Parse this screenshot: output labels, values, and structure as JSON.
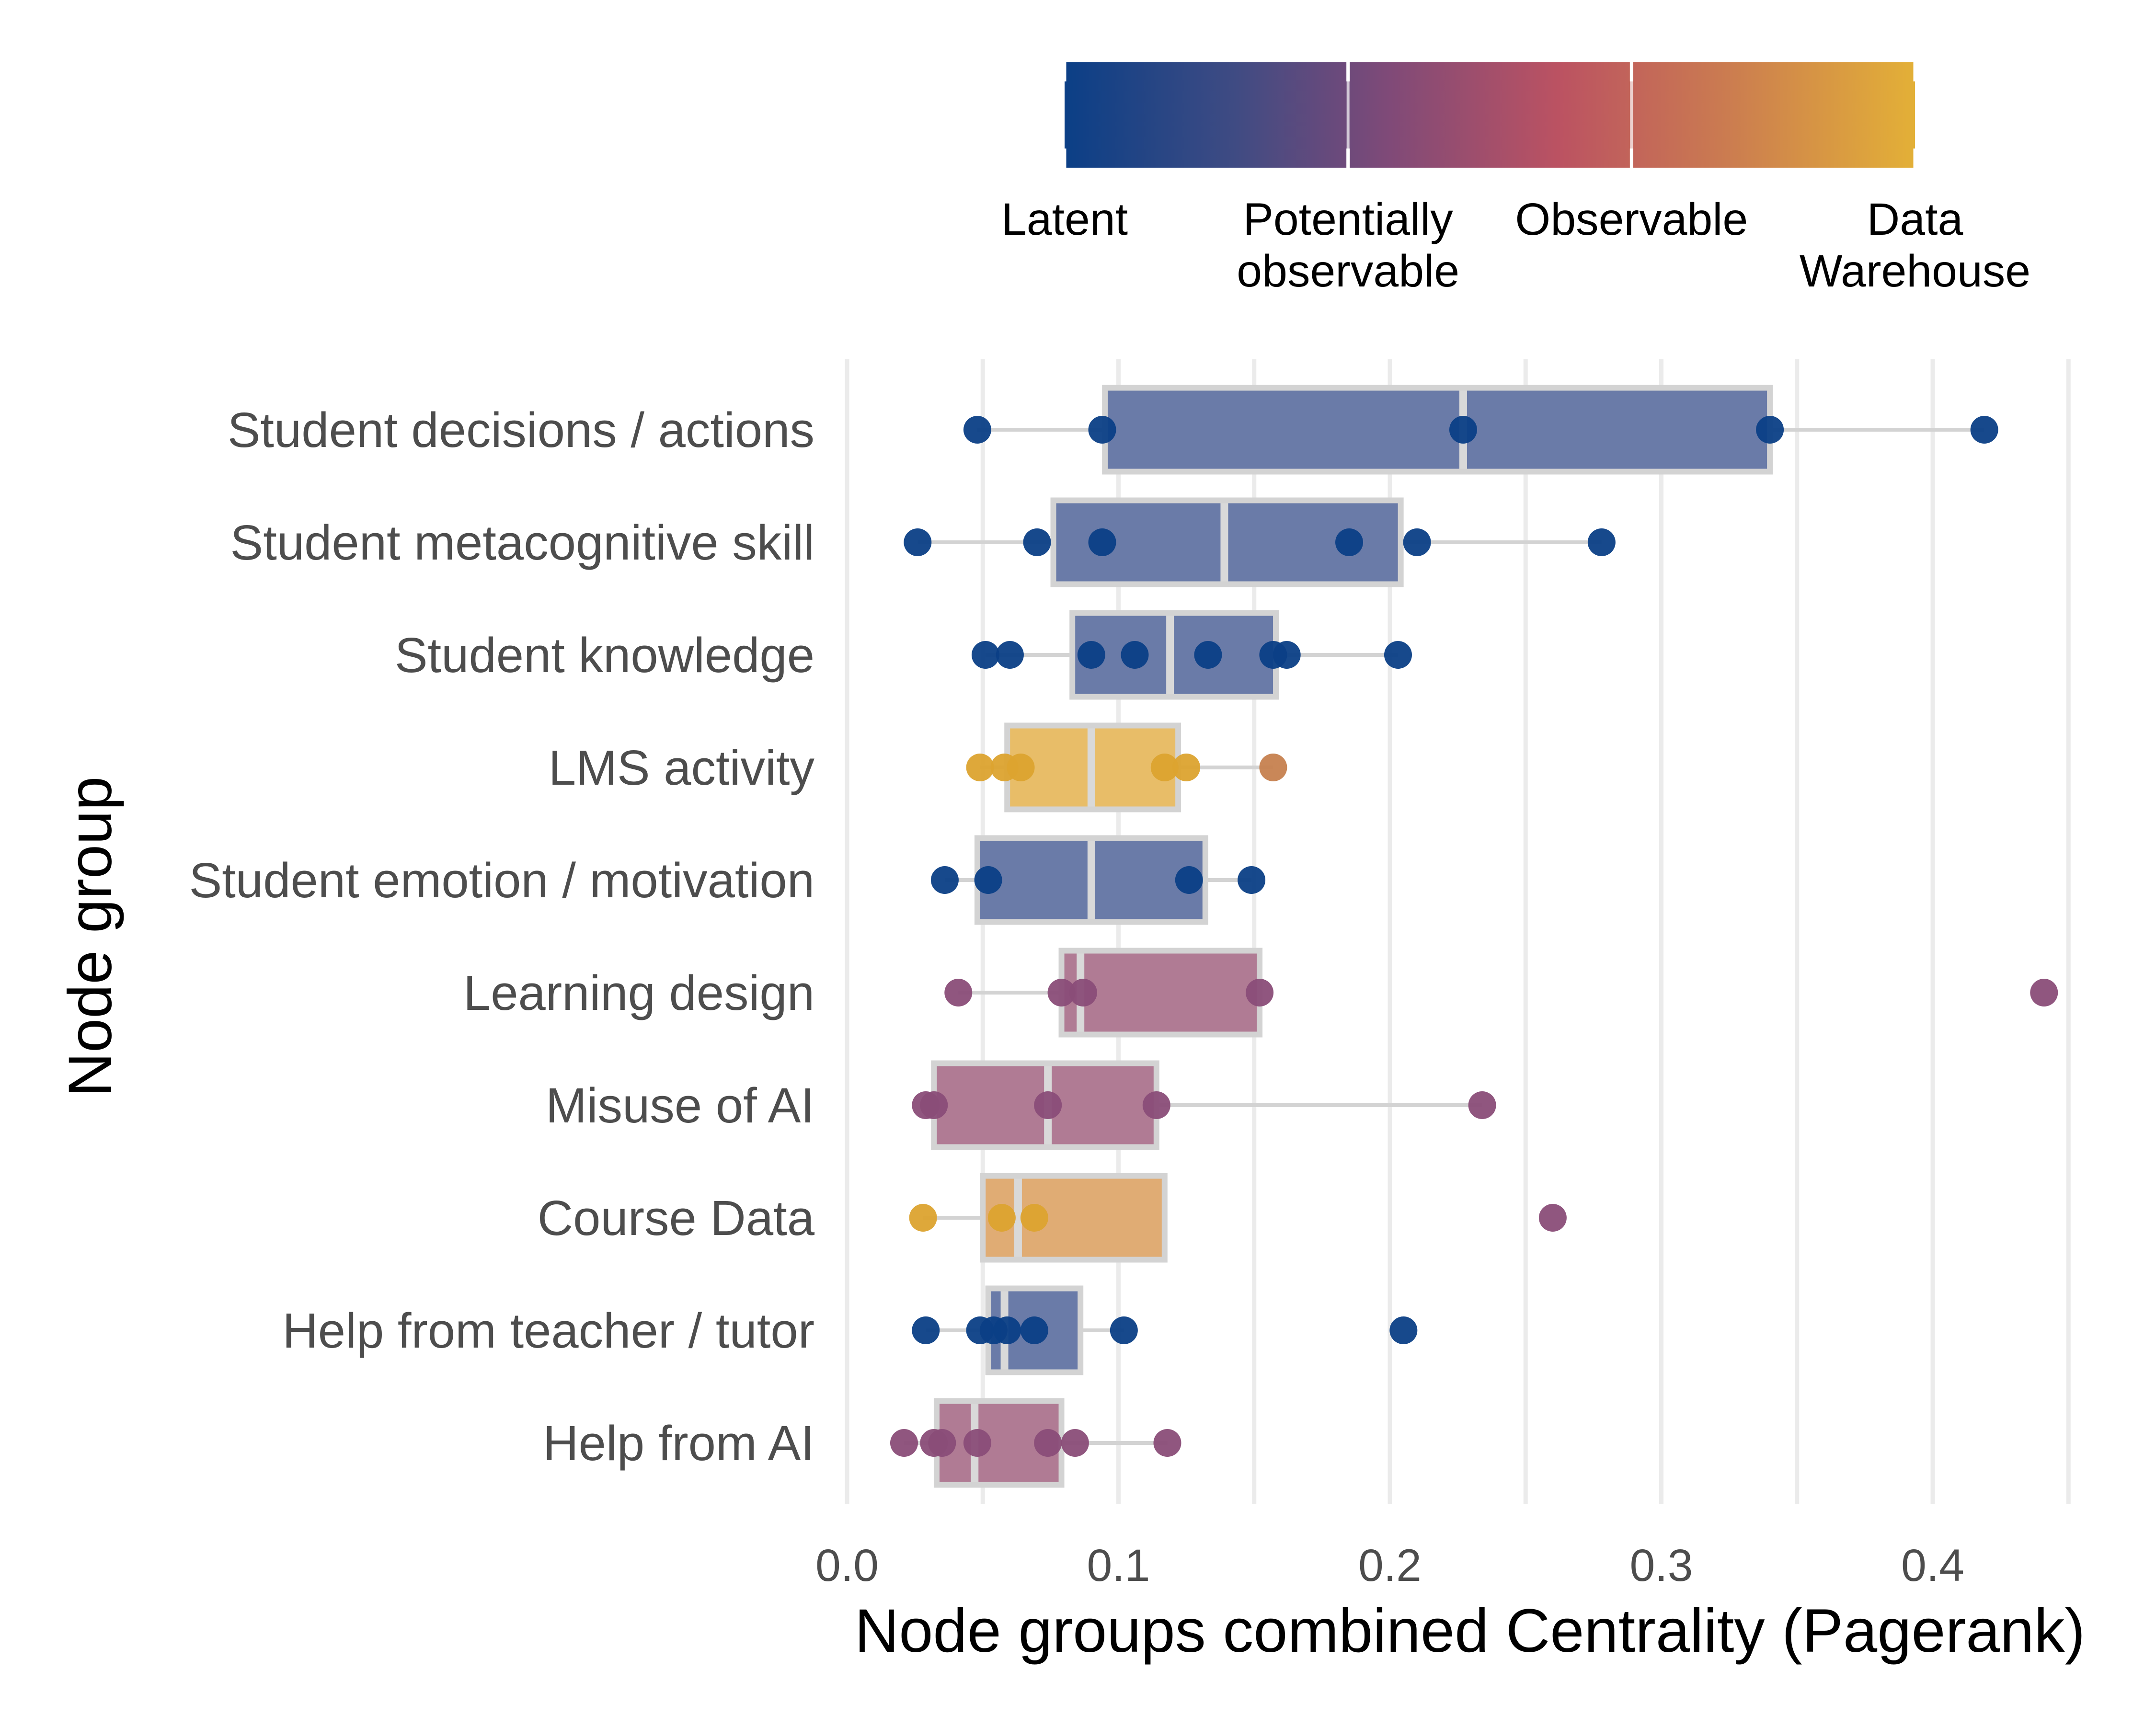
{
  "chart_data": {
    "type": "boxplot",
    "xlabel": "Node groups combined Centrality (Pagerank)",
    "ylabel": "Node group",
    "xlim": [
      0,
      0.45
    ],
    "xticks": [
      0.0,
      0.1,
      0.2,
      0.3,
      0.4
    ],
    "xtick_labels": [
      "0.0",
      "0.1",
      "0.2",
      "0.3",
      "0.4"
    ],
    "grid": true,
    "legend": {
      "type": "colorbar",
      "placement": "top",
      "labels": [
        "Latent",
        "Potentially\nobservable",
        "Observable",
        "Data\nWarehouse"
      ],
      "colors": [
        "#0b3f86",
        "#8a4d78",
        "#b95361",
        "#e3b037"
      ]
    },
    "colors": {
      "latent": "#0b3f86",
      "potentially_observable": "#8a4d78",
      "observable": "#c6814f",
      "data_warehouse": "#dca32f",
      "box_latent": "#6a7ba8",
      "box_potential": "#b07b94",
      "box_warehouse_lms": "#e8bd68",
      "box_warehouse_course": "#e0ac74"
    },
    "groups": [
      {
        "name": "Student decisions / actions",
        "box": {
          "whisker_low": 0.048,
          "q1": 0.095,
          "median": 0.227,
          "q3": 0.34,
          "whisker_high": 0.419
        },
        "box_color": "#6a7ba8",
        "points": [
          {
            "x": 0.048,
            "type": "latent"
          },
          {
            "x": 0.094,
            "type": "latent"
          },
          {
            "x": 0.227,
            "type": "latent"
          },
          {
            "x": 0.34,
            "type": "latent"
          },
          {
            "x": 0.419,
            "type": "latent"
          }
        ]
      },
      {
        "name": "Student metacognitive skill",
        "box": {
          "whisker_low": 0.026,
          "q1": 0.076,
          "median": 0.139,
          "q3": 0.204,
          "whisker_high": 0.278
        },
        "box_color": "#6a7ba8",
        "points": [
          {
            "x": 0.026,
            "type": "latent"
          },
          {
            "x": 0.07,
            "type": "latent"
          },
          {
            "x": 0.094,
            "type": "latent"
          },
          {
            "x": 0.185,
            "type": "latent"
          },
          {
            "x": 0.21,
            "type": "latent"
          },
          {
            "x": 0.278,
            "type": "latent"
          }
        ]
      },
      {
        "name": "Student knowledge",
        "box": {
          "whisker_low": 0.051,
          "q1": 0.083,
          "median": 0.119,
          "q3": 0.158,
          "whisker_high": 0.203
        },
        "box_color": "#6a7ba8",
        "points": [
          {
            "x": 0.051,
            "type": "latent"
          },
          {
            "x": 0.06,
            "type": "latent"
          },
          {
            "x": 0.09,
            "type": "latent"
          },
          {
            "x": 0.106,
            "type": "latent"
          },
          {
            "x": 0.133,
            "type": "latent"
          },
          {
            "x": 0.157,
            "type": "latent"
          },
          {
            "x": 0.162,
            "type": "latent"
          },
          {
            "x": 0.203,
            "type": "latent"
          }
        ]
      },
      {
        "name": "LMS activity",
        "box": {
          "whisker_low": 0.049,
          "q1": 0.059,
          "median": 0.09,
          "q3": 0.122,
          "whisker_high": 0.157
        },
        "box_color": "#e8bd68",
        "points": [
          {
            "x": 0.049,
            "type": "data_warehouse"
          },
          {
            "x": 0.058,
            "type": "data_warehouse"
          },
          {
            "x": 0.064,
            "type": "data_warehouse"
          },
          {
            "x": 0.117,
            "type": "data_warehouse"
          },
          {
            "x": 0.125,
            "type": "data_warehouse"
          },
          {
            "x": 0.157,
            "type": "observable"
          }
        ]
      },
      {
        "name": "Student emotion / motivation",
        "box": {
          "whisker_low": 0.036,
          "q1": 0.048,
          "median": 0.09,
          "q3": 0.132,
          "whisker_high": 0.149
        },
        "box_color": "#6a7ba8",
        "points": [
          {
            "x": 0.036,
            "type": "latent"
          },
          {
            "x": 0.052,
            "type": "latent"
          },
          {
            "x": 0.126,
            "type": "latent"
          },
          {
            "x": 0.149,
            "type": "latent"
          }
        ]
      },
      {
        "name": "Learning design",
        "box": {
          "whisker_low": 0.041,
          "q1": 0.079,
          "median": 0.086,
          "q3": 0.152,
          "whisker_high": 0.152
        },
        "box_color": "#b07b94",
        "points": [
          {
            "x": 0.041,
            "type": "potentially_observable"
          },
          {
            "x": 0.079,
            "type": "potentially_observable"
          },
          {
            "x": 0.087,
            "type": "potentially_observable"
          },
          {
            "x": 0.152,
            "type": "potentially_observable"
          },
          {
            "x": 0.441,
            "type": "potentially_observable"
          }
        ]
      },
      {
        "name": "Misuse of AI",
        "box": {
          "whisker_low": 0.029,
          "q1": 0.032,
          "median": 0.074,
          "q3": 0.114,
          "whisker_high": 0.234
        },
        "box_color": "#b07b94",
        "points": [
          {
            "x": 0.029,
            "type": "potentially_observable"
          },
          {
            "x": 0.032,
            "type": "potentially_observable"
          },
          {
            "x": 0.074,
            "type": "potentially_observable"
          },
          {
            "x": 0.114,
            "type": "potentially_observable"
          },
          {
            "x": 0.234,
            "type": "potentially_observable"
          }
        ]
      },
      {
        "name": "Course Data",
        "box": {
          "whisker_low": 0.028,
          "q1": 0.05,
          "median": 0.063,
          "q3": 0.117,
          "whisker_high": 0.117
        },
        "box_color": "#e0ac74",
        "points": [
          {
            "x": 0.028,
            "type": "data_warehouse"
          },
          {
            "x": 0.057,
            "type": "data_warehouse"
          },
          {
            "x": 0.069,
            "type": "data_warehouse"
          },
          {
            "x": 0.26,
            "type": "potentially_observable"
          }
        ]
      },
      {
        "name": "Help from teacher / tutor",
        "box": {
          "whisker_low": 0.029,
          "q1": 0.052,
          "median": 0.058,
          "q3": 0.086,
          "whisker_high": 0.102
        },
        "box_color": "#6a7ba8",
        "points": [
          {
            "x": 0.029,
            "type": "latent"
          },
          {
            "x": 0.049,
            "type": "latent"
          },
          {
            "x": 0.054,
            "type": "latent"
          },
          {
            "x": 0.059,
            "type": "latent"
          },
          {
            "x": 0.069,
            "type": "latent"
          },
          {
            "x": 0.102,
            "type": "latent"
          },
          {
            "x": 0.205,
            "type": "latent"
          }
        ]
      },
      {
        "name": "Help from AI",
        "box": {
          "whisker_low": 0.021,
          "q1": 0.033,
          "median": 0.047,
          "q3": 0.079,
          "whisker_high": 0.118
        },
        "box_color": "#b07b94",
        "points": [
          {
            "x": 0.021,
            "type": "potentially_observable"
          },
          {
            "x": 0.032,
            "type": "potentially_observable"
          },
          {
            "x": 0.035,
            "type": "potentially_observable"
          },
          {
            "x": 0.048,
            "type": "potentially_observable"
          },
          {
            "x": 0.074,
            "type": "potentially_observable"
          },
          {
            "x": 0.084,
            "type": "potentially_observable"
          },
          {
            "x": 0.118,
            "type": "potentially_observable"
          }
        ]
      }
    ]
  }
}
